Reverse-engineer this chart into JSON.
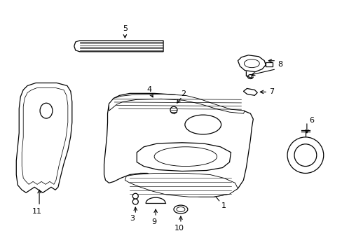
{
  "bg_color": "#ffffff",
  "line_color": "#000000",
  "figsize": [
    4.89,
    3.6
  ],
  "dpi": 100,
  "lw": 0.9
}
